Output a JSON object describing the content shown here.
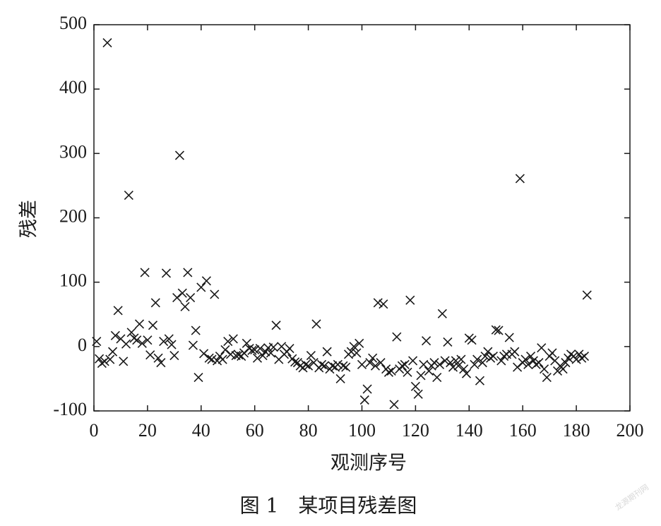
{
  "chart_data": {
    "type": "scatter",
    "marker": "x",
    "color": "#1a1a1a",
    "x_label": "观测序号",
    "y_label": "残差",
    "caption": "图 1　某项目残差图",
    "watermark": "龙源期刊网",
    "xlim": [
      0,
      200
    ],
    "ylim": [
      -100,
      500
    ],
    "xticks": [
      0,
      20,
      40,
      60,
      80,
      100,
      120,
      140,
      160,
      180,
      200
    ],
    "yticks": [
      -100,
      0,
      100,
      200,
      300,
      400,
      500
    ],
    "x": [
      1,
      2,
      3,
      4,
      5,
      6,
      7,
      8,
      9,
      10,
      11,
      12,
      13,
      14,
      15,
      16,
      17,
      18,
      19,
      20,
      21,
      22,
      23,
      24,
      25,
      26,
      27,
      28,
      29,
      30,
      31,
      32,
      33,
      34,
      35,
      36,
      37,
      38,
      39,
      40,
      41,
      42,
      43,
      44,
      45,
      46,
      47,
      48,
      49,
      50,
      51,
      52,
      53,
      54,
      55,
      56,
      57,
      58,
      59,
      60,
      61,
      62,
      63,
      64,
      65,
      66,
      67,
      68,
      69,
      70,
      71,
      72,
      73,
      74,
      75,
      76,
      77,
      78,
      79,
      80,
      81,
      82,
      83,
      84,
      85,
      86,
      87,
      88,
      89,
      90,
      91,
      92,
      93,
      94,
      95,
      96,
      97,
      98,
      99,
      100,
      101,
      102,
      103,
      104,
      105,
      106,
      107,
      108,
      109,
      110,
      111,
      112,
      113,
      114,
      115,
      116,
      117,
      118,
      119,
      120,
      121,
      122,
      123,
      124,
      125,
      126,
      127,
      128,
      129,
      130,
      131,
      132,
      133,
      134,
      135,
      136,
      137,
      138,
      139,
      140,
      141,
      142,
      143,
      144,
      145,
      146,
      147,
      148,
      149,
      150,
      151,
      152,
      153,
      154,
      155,
      156,
      157,
      158,
      159,
      160,
      161,
      162,
      163,
      164,
      165,
      166,
      167,
      168,
      169,
      170,
      171,
      172,
      173,
      174,
      175,
      176,
      177,
      178,
      179,
      180,
      181,
      182,
      183,
      184
    ],
    "values": [
      8,
      -19,
      -26,
      -23,
      472,
      -20,
      -8,
      17,
      56,
      12,
      -23,
      4,
      235,
      22,
      13,
      10,
      35,
      5,
      115,
      10,
      -13,
      33,
      68,
      -18,
      -25,
      8,
      114,
      12,
      3,
      -14,
      76,
      297,
      83,
      62,
      115,
      76,
      2,
      25,
      -48,
      92,
      -11,
      102,
      -18,
      -20,
      81,
      -22,
      -15,
      -20,
      -5,
      8,
      -12,
      12,
      -14,
      -13,
      -15,
      -10,
      5,
      -3,
      -6,
      -5,
      -18,
      -3,
      -14,
      -8,
      -2,
      -10,
      -1,
      33,
      -20,
      0,
      -12,
      -8,
      -3,
      -19,
      -24,
      -25,
      -30,
      -33,
      -28,
      -30,
      -14,
      -25,
      35,
      -33,
      -28,
      -30,
      -8,
      -35,
      -30,
      -32,
      -28,
      -50,
      -30,
      -32,
      -12,
      -8,
      0,
      -10,
      5,
      -28,
      -83,
      -66,
      -25,
      -18,
      -30,
      68,
      -25,
      66,
      -35,
      -40,
      -38,
      -90,
      15,
      -35,
      -30,
      -28,
      -40,
      72,
      -22,
      -62,
      -74,
      -45,
      -28,
      9,
      -38,
      -30,
      -25,
      -48,
      -28,
      51,
      -22,
      7,
      -25,
      -32,
      -22,
      -30,
      -20,
      -35,
      -42,
      13,
      10,
      -28,
      -20,
      -53,
      -25,
      -15,
      -8,
      -18,
      -15,
      26,
      25,
      -22,
      -15,
      -12,
      14,
      -12,
      -8,
      -32,
      261,
      -25,
      -20,
      -28,
      -15,
      -22,
      -28,
      -25,
      -2,
      -35,
      -48,
      -15,
      -10,
      -22,
      -38,
      -30,
      -35,
      -25,
      -18,
      -12,
      -15,
      -20,
      -12,
      -18,
      -15,
      80
    ]
  }
}
